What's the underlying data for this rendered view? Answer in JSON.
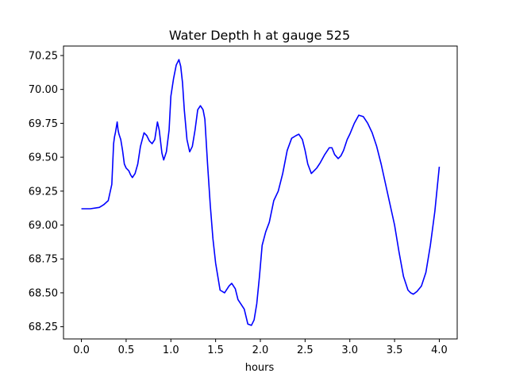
{
  "chart_data": {
    "type": "line",
    "title": "Water Depth h at gauge 525",
    "xlabel": "hours",
    "ylabel": "",
    "xlim": [
      -0.2,
      4.2
    ],
    "ylim": [
      68.16,
      70.32
    ],
    "xticks": [
      0.0,
      0.5,
      1.0,
      1.5,
      2.0,
      2.5,
      3.0,
      3.5,
      4.0
    ],
    "xtick_labels": [
      "0.0",
      "0.5",
      "1.0",
      "1.5",
      "2.0",
      "2.5",
      "3.0",
      "3.5",
      "4.0"
    ],
    "yticks": [
      68.25,
      68.5,
      68.75,
      69.0,
      69.25,
      69.5,
      69.75,
      70.0,
      70.25
    ],
    "ytick_labels": [
      "68.25",
      "68.50",
      "68.75",
      "69.00",
      "69.25",
      "69.50",
      "69.75",
      "70.00",
      "70.25"
    ],
    "grid": false,
    "legend": "none",
    "series": [
      {
        "color": "#0000ff",
        "x": [
          0.0,
          0.1,
          0.2,
          0.25,
          0.3,
          0.34,
          0.36,
          0.37,
          0.38,
          0.4,
          0.41,
          0.42,
          0.44,
          0.46,
          0.48,
          0.5,
          0.53,
          0.55,
          0.57,
          0.6,
          0.63,
          0.66,
          0.7,
          0.73,
          0.76,
          0.79,
          0.82,
          0.85,
          0.87,
          0.9,
          0.92,
          0.95,
          0.98,
          1.0,
          1.03,
          1.06,
          1.09,
          1.11,
          1.13,
          1.15,
          1.18,
          1.21,
          1.24,
          1.27,
          1.3,
          1.33,
          1.36,
          1.38,
          1.41,
          1.44,
          1.47,
          1.5,
          1.55,
          1.6,
          1.65,
          1.68,
          1.72,
          1.75,
          1.78,
          1.82,
          1.86,
          1.9,
          1.93,
          1.96,
          1.99,
          2.02,
          2.06,
          2.1,
          2.15,
          2.2,
          2.25,
          2.3,
          2.35,
          2.4,
          2.43,
          2.47,
          2.5,
          2.53,
          2.57,
          2.6,
          2.63,
          2.67,
          2.72,
          2.77,
          2.8,
          2.83,
          2.87,
          2.9,
          2.93,
          2.97,
          3.0,
          3.05,
          3.1,
          3.15,
          3.2,
          3.25,
          3.3,
          3.35,
          3.4,
          3.45,
          3.5,
          3.55,
          3.6,
          3.65,
          3.68,
          3.71,
          3.75,
          3.8,
          3.85,
          3.9,
          3.95,
          4.0
        ],
        "y": [
          69.12,
          69.12,
          69.13,
          69.15,
          69.18,
          69.3,
          69.6,
          69.65,
          69.68,
          69.76,
          69.7,
          69.67,
          69.63,
          69.55,
          69.45,
          69.42,
          69.4,
          69.37,
          69.35,
          69.38,
          69.45,
          69.58,
          69.68,
          69.66,
          69.62,
          69.6,
          69.63,
          69.76,
          69.7,
          69.53,
          69.48,
          69.54,
          69.7,
          69.95,
          70.08,
          70.18,
          70.22,
          70.17,
          70.05,
          69.85,
          69.63,
          69.54,
          69.58,
          69.7,
          69.85,
          69.88,
          69.85,
          69.78,
          69.45,
          69.15,
          68.9,
          68.72,
          68.52,
          68.5,
          68.55,
          68.57,
          68.53,
          68.45,
          68.42,
          68.38,
          68.27,
          68.26,
          68.3,
          68.42,
          68.62,
          68.85,
          68.95,
          69.02,
          69.18,
          69.25,
          69.38,
          69.55,
          69.64,
          69.66,
          69.67,
          69.63,
          69.55,
          69.45,
          69.38,
          69.4,
          69.42,
          69.46,
          69.52,
          69.57,
          69.57,
          69.52,
          69.49,
          69.51,
          69.55,
          69.63,
          69.67,
          69.75,
          69.81,
          69.8,
          69.75,
          69.68,
          69.58,
          69.45,
          69.3,
          69.15,
          69.0,
          68.8,
          68.62,
          68.52,
          68.5,
          68.49,
          68.51,
          68.55,
          68.65,
          68.85,
          69.1,
          69.43
        ]
      }
    ]
  }
}
